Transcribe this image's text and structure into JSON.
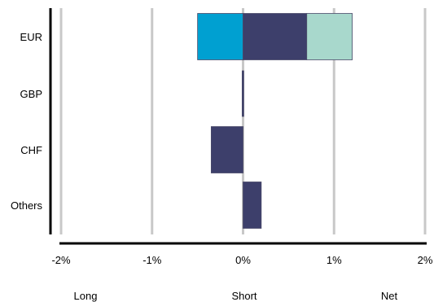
{
  "chart_data": {
    "type": "bar",
    "orientation": "horizontal",
    "stacked": true,
    "categories": [
      "EUR",
      "GBP",
      "CHF",
      "Others"
    ],
    "series": [
      {
        "name": "Long",
        "values": [
          -0.5,
          0,
          0,
          0
        ],
        "color": "#00a0d1"
      },
      {
        "name": "Short",
        "values": [
          0.7,
          -0.01,
          -0.35,
          0.2
        ],
        "color": "#3d3f6b"
      },
      {
        "name": "Net",
        "values": [
          0.5,
          0,
          0,
          0
        ],
        "color": "#a8d8cc"
      }
    ],
    "x_ticks": [
      "-2%",
      "-1%",
      "0%",
      "1%",
      "2%"
    ],
    "xlim": [
      -2,
      2
    ],
    "grid": true,
    "legend_placement": "bottom"
  }
}
